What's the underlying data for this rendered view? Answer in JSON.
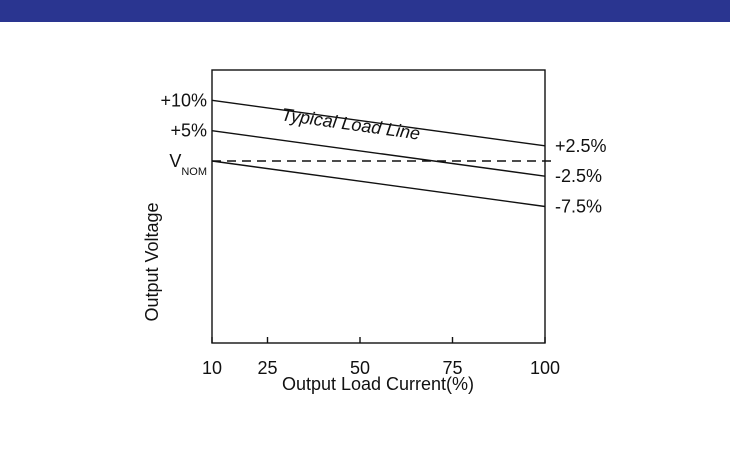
{
  "header_bar": {
    "color": "#2a3590"
  },
  "chart_data": {
    "type": "line",
    "title": "Typical Load Line",
    "xlabel": "Output Load Current(%)",
    "ylabel": "Output Voltage",
    "x_ticks": [
      10,
      25,
      50,
      75,
      100
    ],
    "x_tick_labels": [
      "10",
      "25",
      "50",
      "75",
      "100"
    ],
    "xlim": [
      10,
      100
    ],
    "ylim": [
      -30,
      15
    ],
    "y_tick_labels": [
      {
        "value": 10,
        "text": "+10%"
      },
      {
        "value": 5,
        "text": "+5%"
      },
      {
        "value": 0,
        "text": "V",
        "subscript": "NOM"
      }
    ],
    "series": [
      {
        "x": [
          10,
          100
        ],
        "y": [
          10,
          2.5
        ],
        "style": "solid",
        "end_label": "+2.5%"
      },
      {
        "x": [
          10,
          100
        ],
        "y": [
          5,
          -2.5
        ],
        "style": "solid",
        "end_label": "-2.5%"
      },
      {
        "x": [
          10,
          100
        ],
        "y": [
          0,
          -7.5
        ],
        "style": "solid",
        "end_label": "-7.5%"
      },
      {
        "x": [
          10,
          100
        ],
        "y": [
          0,
          0
        ],
        "style": "dashed",
        "reference": "V_NOM"
      }
    ],
    "grid": false,
    "line_color": "#111111"
  }
}
